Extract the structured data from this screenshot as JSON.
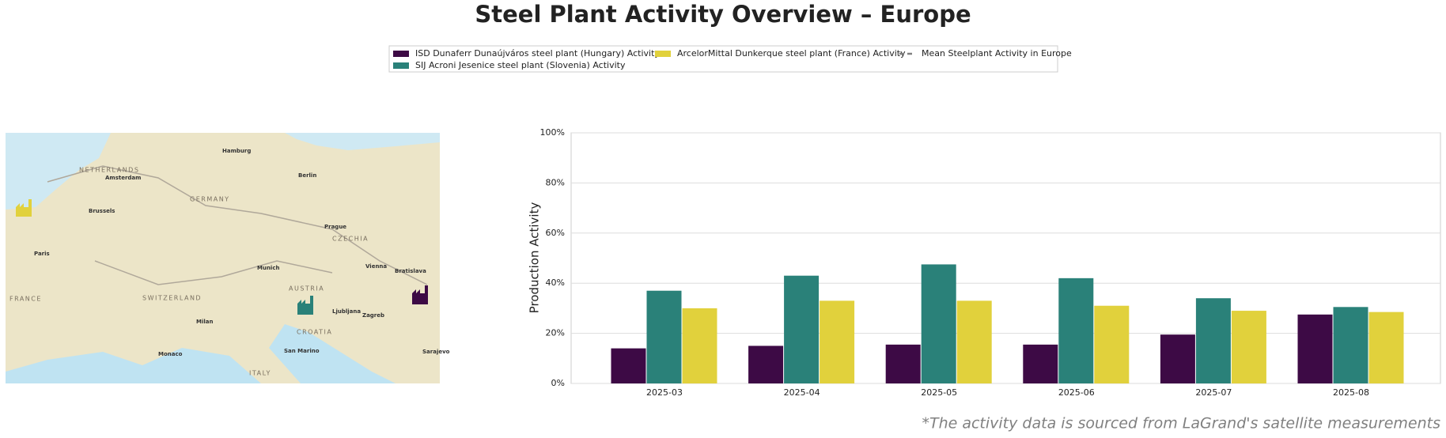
{
  "chart_data": {
    "type": "bar",
    "title": "Steel Plant Activity Overview – Europe",
    "ylabel": "Production Activity",
    "footnote": "*The activity data is sourced from LaGrand's satellite measurements",
    "categories": [
      "2025-03",
      "2025-04",
      "2025-05",
      "2025-06",
      "2025-07",
      "2025-08"
    ],
    "series": [
      {
        "name": "ISD Dunaferr Dunaújváros steel plant (Hungary) Activity",
        "color": "#3d0a45",
        "values": [
          14,
          15,
          15.5,
          15.5,
          19.5,
          27.5
        ]
      },
      {
        "name": "SIJ Acroni Jesenice steel plant (Slovenia) Activity",
        "color": "#2a8179",
        "values": [
          37,
          43,
          47.5,
          42,
          34,
          30.5
        ]
      },
      {
        "name": "ArcelorMittal Dunkerque steel plant (France) Activity",
        "color": "#e1d13c",
        "values": [
          30,
          33,
          33,
          31,
          29,
          28.5
        ]
      },
      {
        "name": "Mean Steelplant Activity in Europe",
        "color": "#808080",
        "linestyle": "dashed",
        "values": [
          null,
          null,
          null,
          null,
          null,
          null
        ]
      }
    ],
    "ylim": [
      0,
      100
    ],
    "yticks": [
      {
        "value": 0,
        "label": "0%"
      },
      {
        "value": 20,
        "label": "20%"
      },
      {
        "value": 40,
        "label": "40%"
      },
      {
        "value": 60,
        "label": "60%"
      },
      {
        "value": 80,
        "label": "80%"
      },
      {
        "value": 100,
        "label": "100%"
      }
    ],
    "grid": true
  },
  "map": {
    "labels": [
      "Hamburg",
      "Berlin",
      "Amsterdam",
      "Brussels",
      "Paris",
      "Prague",
      "Munich",
      "Vienna",
      "Bratislava",
      "Ljubljana",
      "Zagreb",
      "Milan",
      "Monaco",
      "San Marino",
      "Sarajevo"
    ],
    "countries": [
      "FRANCE",
      "GERMANY",
      "AUSTRIA",
      "CZECHIA",
      "NETHERLANDS",
      "SWITZERLAND",
      "CROATIA",
      "ITALY"
    ]
  }
}
